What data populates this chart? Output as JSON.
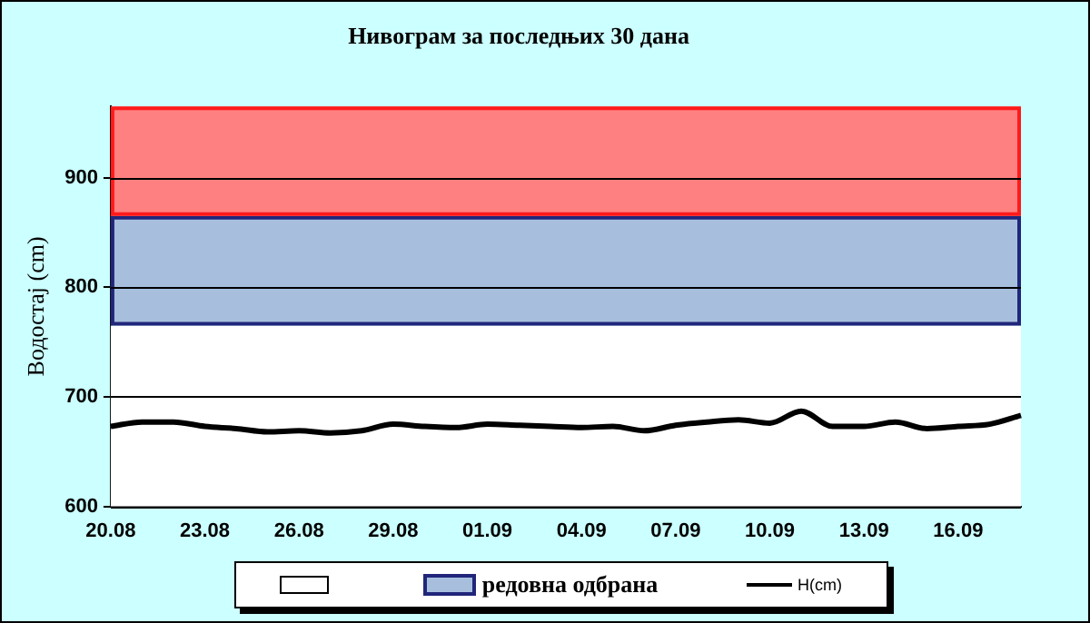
{
  "chart_data": {
    "type": "line",
    "title": "Нивограм за последњих 30 дана",
    "ylabel": "Водостај (cm)",
    "categories": [
      "20.08",
      null,
      null,
      "23.08",
      null,
      null,
      "26.08",
      null,
      null,
      "29.08",
      null,
      null,
      "01.09",
      null,
      null,
      "04.09",
      null,
      null,
      "07.09",
      null,
      null,
      "10.09",
      null,
      null,
      "13.09",
      null,
      null,
      "16.09",
      null,
      null
    ],
    "series": [
      {
        "name": "H(cm)",
        "color": "#000000",
        "values": [
          673,
          677,
          677,
          673,
          671,
          668,
          669,
          667,
          669,
          675,
          673,
          672,
          675,
          674,
          673,
          672,
          673,
          669,
          674,
          677,
          679,
          676,
          687,
          673,
          673,
          677,
          671,
          673,
          675,
          683
        ]
      }
    ],
    "bands": [
      {
        "axis": "y",
        "from": 600,
        "to": 765,
        "label": null,
        "color": "#ffffff"
      },
      {
        "axis": "y",
        "from": 765,
        "to": 865,
        "label": "редовна одбрана",
        "color": "#a7bfdd"
      },
      {
        "axis": "y",
        "from": 865,
        "to": 965,
        "color": "#ff8080"
      }
    ],
    "ylim": [
      600,
      965
    ],
    "yticks": [
      600,
      700,
      800,
      900
    ],
    "grid": "y",
    "legend": "bottom",
    "marker": "none",
    "line_style": "solid"
  }
}
